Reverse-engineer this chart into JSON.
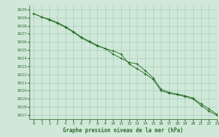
{
  "title": "Graphe pression niveau de la mer (hPa)",
  "bg_color": "#cfe8d8",
  "grid_color": "#a8ccba",
  "line_color": "#2d6e2d",
  "marker_color": "#2d6e2d",
  "xlim": [
    -0.5,
    23
  ],
  "ylim": [
    1016.5,
    1030.5
  ],
  "xticks": [
    0,
    1,
    2,
    3,
    4,
    5,
    6,
    7,
    8,
    9,
    10,
    11,
    12,
    13,
    14,
    15,
    16,
    17,
    18,
    19,
    20,
    21,
    22,
    23
  ],
  "yticks": [
    1017,
    1018,
    1019,
    1020,
    1021,
    1022,
    1023,
    1024,
    1025,
    1026,
    1027,
    1028,
    1029,
    1030
  ],
  "line1_x": [
    0,
    1,
    2,
    3,
    4,
    5,
    6,
    7,
    8,
    9,
    10,
    11,
    12,
    13,
    14,
    15,
    16,
    17,
    18,
    19,
    20,
    21,
    22,
    23
  ],
  "line1_y": [
    1029.5,
    1029.1,
    1028.7,
    1028.3,
    1027.8,
    1027.2,
    1026.5,
    1026.0,
    1025.5,
    1025.2,
    1024.9,
    1024.5,
    1023.3,
    1022.7,
    1022.1,
    1021.4,
    1020.0,
    1019.7,
    1019.5,
    1019.3,
    1019.0,
    1018.2,
    1017.5,
    1017.0
  ],
  "line2_x": [
    0,
    1,
    2,
    3,
    4,
    5,
    6,
    7,
    8,
    9,
    10,
    11,
    12,
    13,
    14,
    15,
    16,
    17,
    18,
    19,
    20,
    21,
    22,
    23
  ],
  "line2_y": [
    1029.5,
    1029.1,
    1028.8,
    1028.4,
    1027.9,
    1027.3,
    1026.6,
    1026.1,
    1025.6,
    1025.2,
    1024.5,
    1024.0,
    1023.5,
    1023.3,
    1022.5,
    1021.6,
    1020.2,
    1019.8,
    1019.6,
    1019.4,
    1019.1,
    1018.4,
    1017.8,
    1017.1
  ],
  "title_fontsize": 5.5,
  "tick_fontsize": 4.5
}
